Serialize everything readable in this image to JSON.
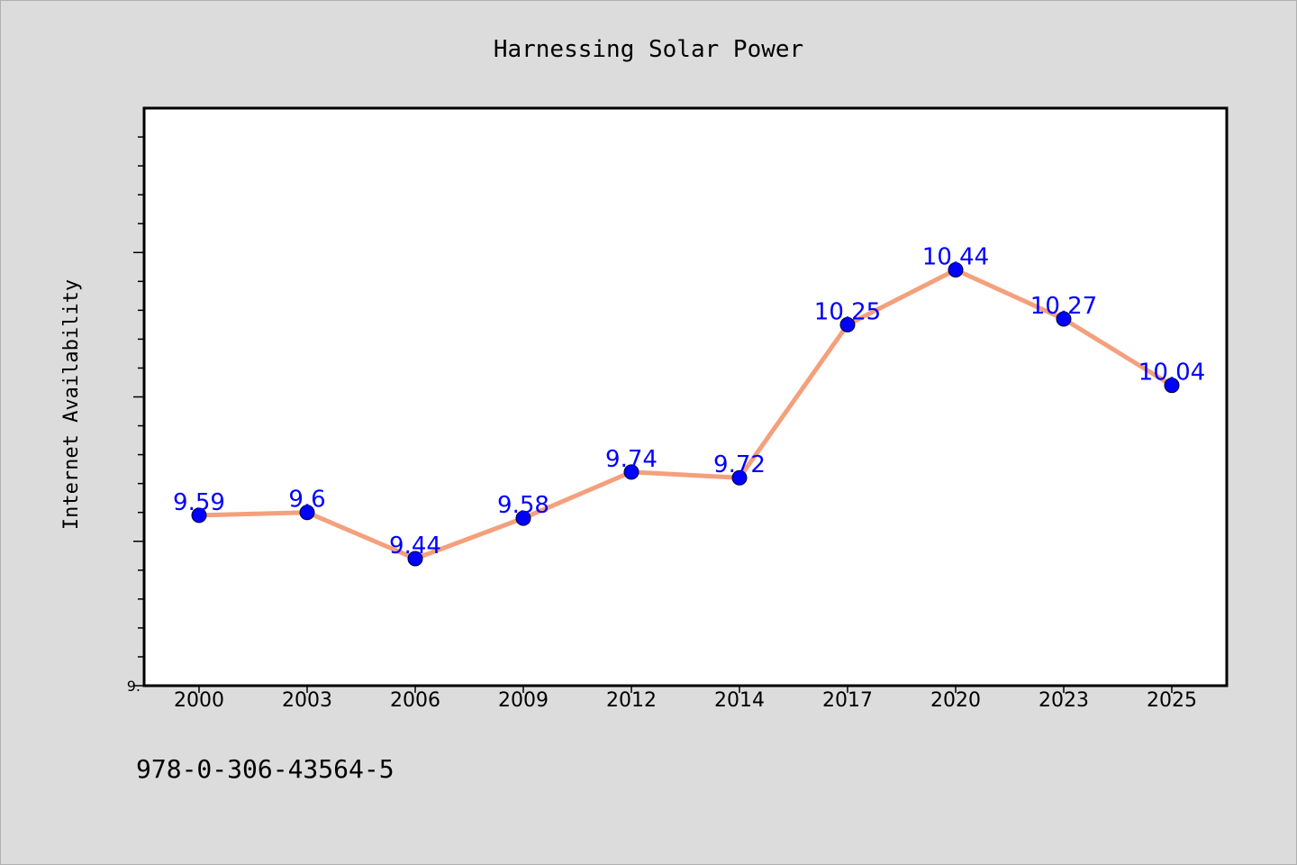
{
  "chart_data": {
    "type": "line",
    "title": "Harnessing Solar Power",
    "xlabel": "",
    "ylabel": "Internet Availability",
    "categories": [
      "2000",
      "2003",
      "2006",
      "2009",
      "2012",
      "2014",
      "2017",
      "2020",
      "2023",
      "2025"
    ],
    "series": [
      {
        "name": "",
        "values": [
          9.59,
          9.6,
          9.44,
          9.58,
          9.74,
          9.72,
          10.25,
          10.44,
          10.27,
          10.04
        ]
      }
    ],
    "data_labels": [
      "9.59",
      "9.6",
      "9.44",
      "9.58",
      "9.74",
      "9.72",
      "10.25",
      "10.44",
      "10.27",
      "10.04"
    ],
    "ylim": [
      9.0,
      11.0
    ],
    "y_tick_labels": [
      {
        "value": 9.0,
        "label": "9."
      }
    ],
    "grid": false,
    "line_color": "#f4a07c",
    "marker_color": "#0000ff",
    "label_color": "#0000ff"
  },
  "footer": {
    "isbn": "978-0-306-43564-5"
  }
}
